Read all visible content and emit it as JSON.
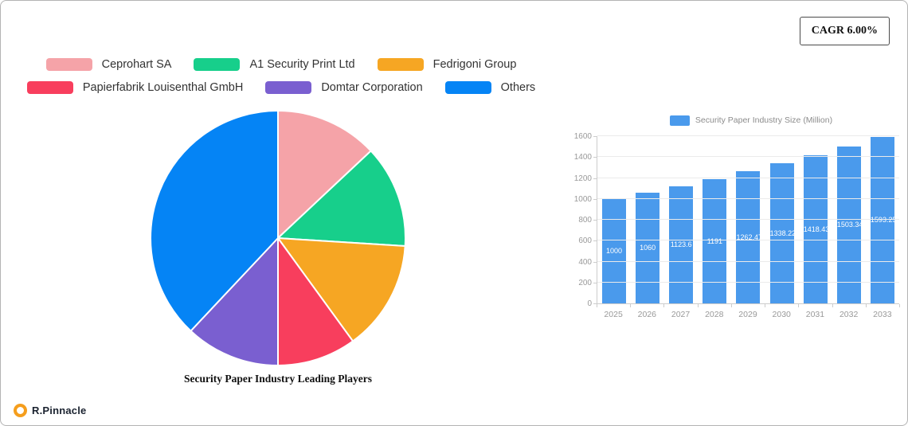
{
  "header": {
    "cagr_label": "CAGR 6.00%"
  },
  "footer": {
    "brand": "R.Pinnacle"
  },
  "chart_data": [
    {
      "type": "pie",
      "title": "Security Paper Industry Leading Players",
      "labels": [
        "Ceprohart SA",
        "A1 Security Print Ltd",
        "Fedrigoni Group",
        "Papierfabrik Louisenthal GmbH",
        "Domtar Corporation",
        "Others"
      ],
      "values": [
        13,
        13,
        14,
        10,
        12,
        38
      ],
      "colors": [
        "#f5a3a8",
        "#17cf8b",
        "#f6a623",
        "#f83e5d",
        "#7a5fd0",
        "#0584f5"
      ],
      "legend_position": "top-left"
    },
    {
      "type": "bar",
      "legend": "Security Paper Industry Size (Million)",
      "categories": [
        "2025",
        "2026",
        "2027",
        "2028",
        "2029",
        "2030",
        "2031",
        "2032",
        "2033"
      ],
      "values": [
        1000,
        1060,
        1123.6,
        1191,
        1262.47,
        1338.22,
        1418.43,
        1503.34,
        1593.25
      ],
      "bar_color": "#4a9aec",
      "ylim": [
        0,
        1600
      ],
      "ytick_step": 200,
      "grid": true,
      "legend_position": "top"
    }
  ]
}
